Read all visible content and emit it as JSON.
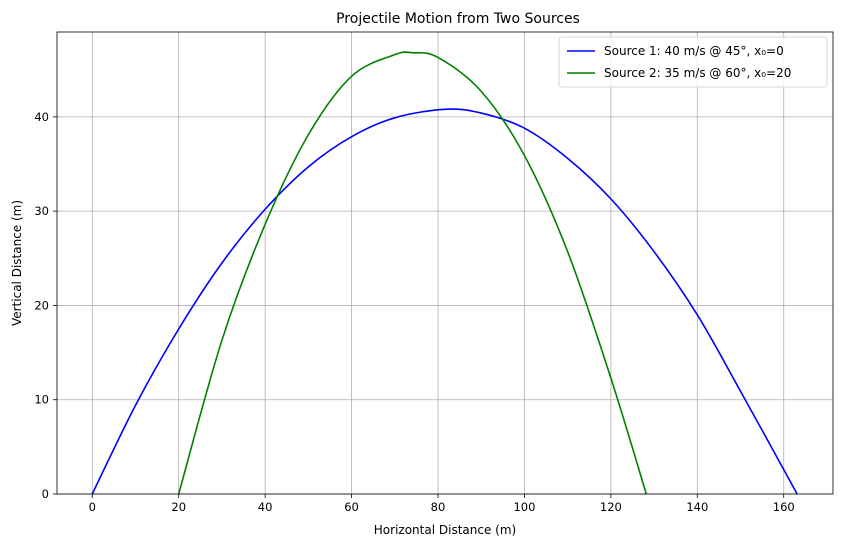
{
  "chart_data": {
    "type": "line",
    "title": "Projectile Motion from Two Sources",
    "xlabel": "Horizontal Distance (m)",
    "ylabel": "Vertical Distance (m)",
    "xlim": [
      -8.16,
      171.4
    ],
    "ylim": [
      0,
      49.0
    ],
    "xticks": [
      0,
      20,
      40,
      60,
      80,
      100,
      120,
      140,
      160
    ],
    "yticks": [
      0,
      10,
      20,
      30,
      40
    ],
    "grid": true,
    "legend_position": "top-right",
    "series": [
      {
        "name": "Source 1: 40 m/s @ 45°, x₀=0",
        "color": "#0000ff",
        "x": [
          0,
          10,
          20,
          30,
          40,
          50,
          60,
          70,
          81.6,
          90,
          100,
          110,
          120,
          130,
          140,
          150,
          163.1
        ],
        "y": [
          0,
          9.4,
          17.5,
          24.5,
          30.2,
          34.7,
          37.9,
          39.9,
          40.8,
          40.4,
          38.8,
          35.6,
          31.3,
          25.7,
          19.0,
          10.9,
          0
        ]
      },
      {
        "name": "Source 2: 35 m/s @ 60°, x₀=20",
        "color": "#008000",
        "x": [
          20,
          30,
          40,
          50,
          60,
          70,
          74.1,
          80,
          90,
          100,
          110,
          120,
          128.2
        ],
        "y": [
          0,
          16.3,
          28.6,
          38.1,
          44.3,
          46.6,
          46.8,
          46.3,
          42.7,
          35.9,
          25.7,
          12.3,
          0
        ]
      }
    ]
  }
}
